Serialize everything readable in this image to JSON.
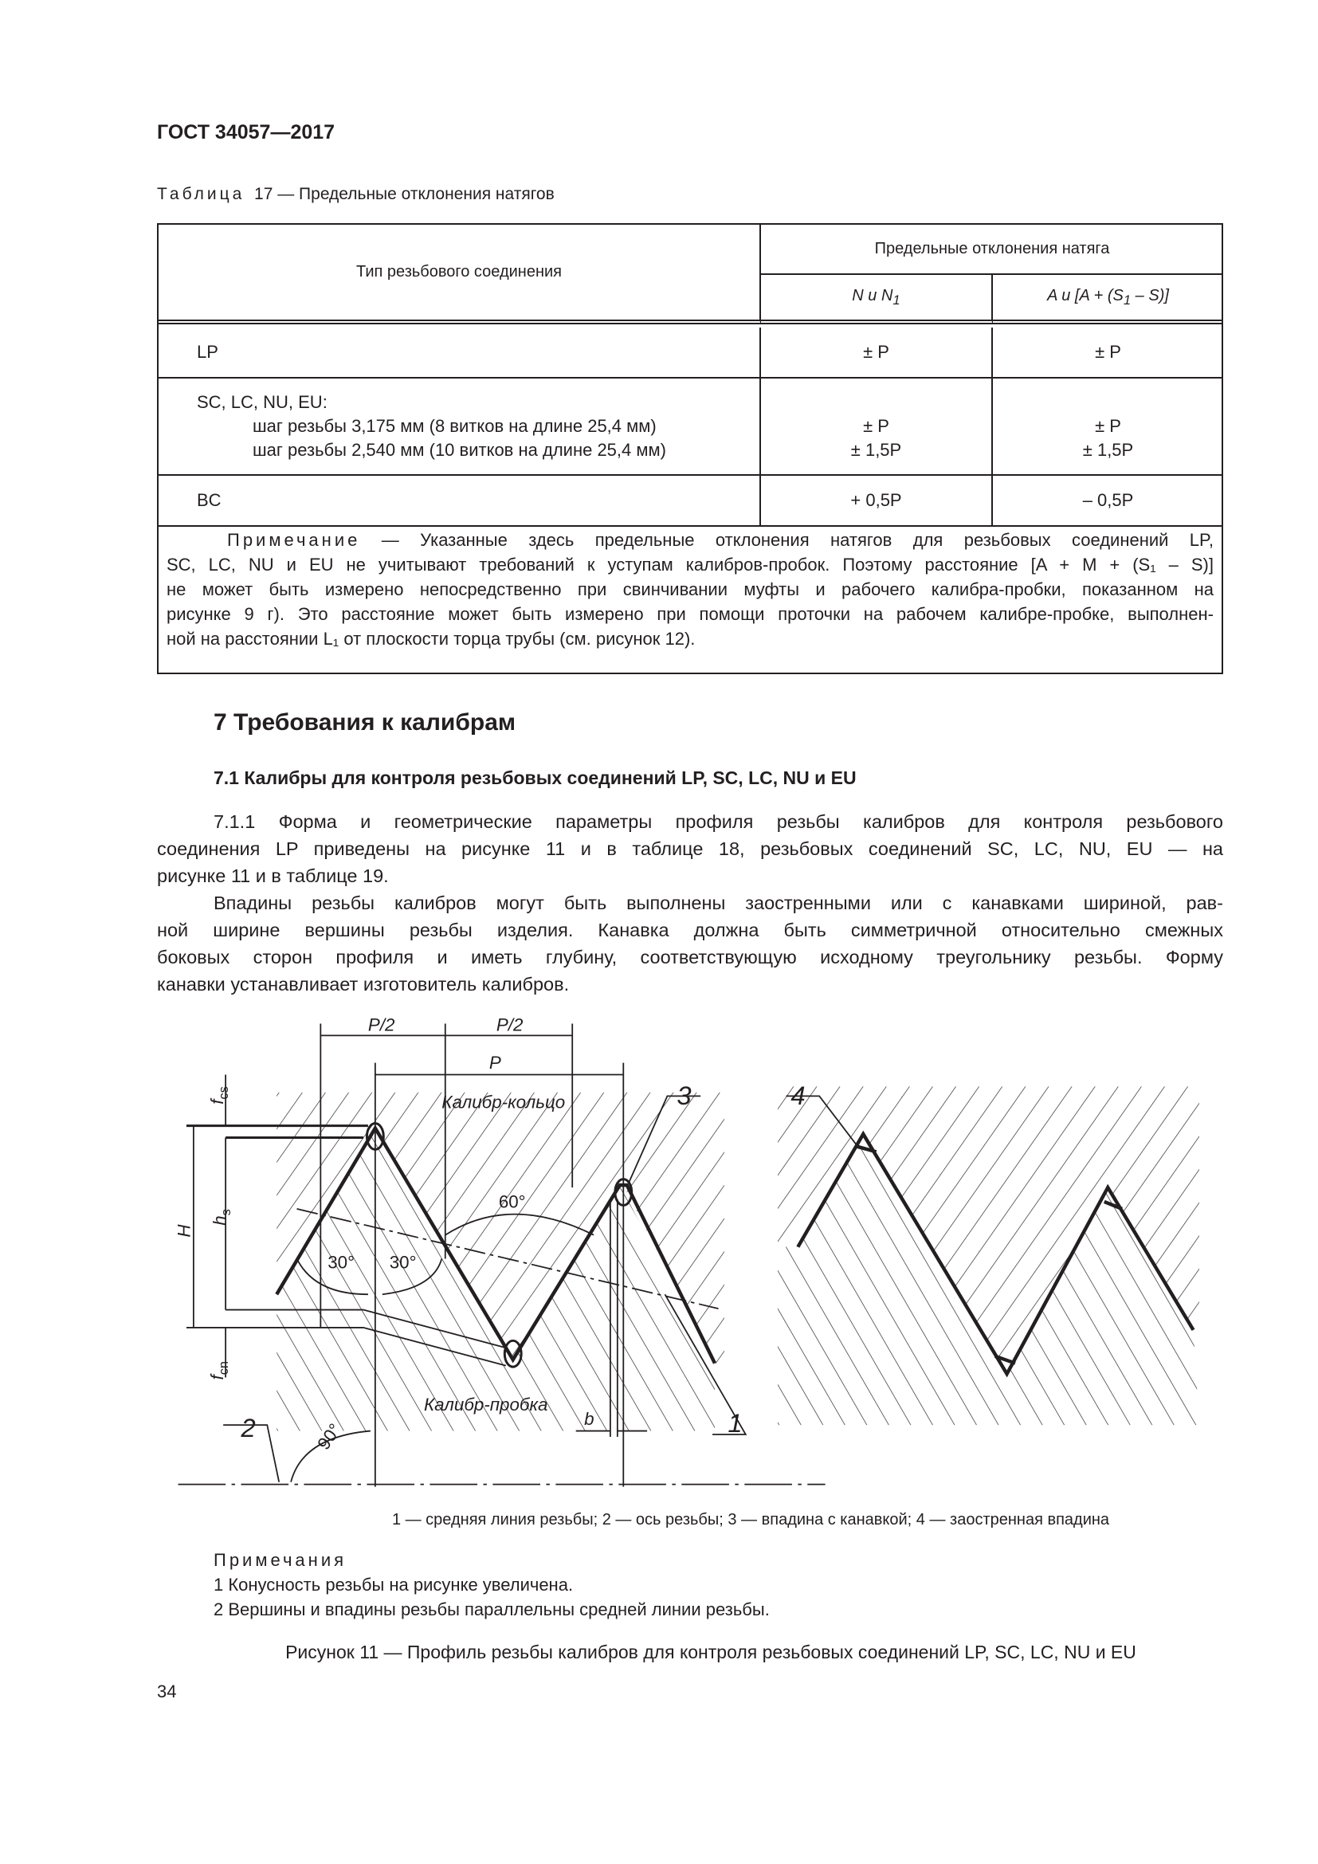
{
  "header": {
    "standard": "ГОСТ 34057—2017"
  },
  "table": {
    "caption_label": "Таблица",
    "caption_text": "17 — Предельные отклонения натягов",
    "col_type": "Тип резьбового соединения",
    "col_group": "Предельные отклонения натяга",
    "col_n": {
      "main": "N и N",
      "sub": "1"
    },
    "col_a": {
      "pre": "A и [A + (S",
      "sub": "1",
      "post": " – S)]"
    },
    "rows": [
      {
        "type": "LP",
        "n": "± P",
        "a": "± P"
      },
      {
        "type": "SC, LC, NU, EU:",
        "sub1": "шаг резьбы 3,175 мм (8 витков на длине 25,4 мм)",
        "sub2": "шаг резьбы 2,540 мм (10 витков на длине 25,4 мм)",
        "n1": "± P",
        "n2": "± 1,5P",
        "a1": "± P",
        "a2": "± 1,5P"
      },
      {
        "type": "BC",
        "n": "+ 0,5P",
        "a": "– 0,5P"
      }
    ],
    "note": {
      "label": "Примечание",
      "lines": [
        " — Указанные здесь предельные отклонения натягов для резьбовых соединений LP,",
        "SC, LC, NU и EU не учитывают требований к уступам калибров-пробок. Поэтому расстояние [A + M + (S₁ – S)]",
        "не может быть измерено непосредственно при свинчивании муфты и рабочего калибра-пробки, показанном на",
        "рисунке 9 г). Это расстояние может быть измерено при помощи проточки на рабочем калибре-пробке, выполнен-",
        "ной на расстоянии L₁ от плоскости торца трубы (см. рисунок 12)."
      ]
    }
  },
  "section": {
    "title": "7  Требования к калибрам",
    "subtitle": "7.1  Калибры для контроля резьбовых соединений LP, SC, LC, NU и EU",
    "para1": [
      "7.1.1 Форма и геометрические параметры профиля резьбы калибров для контроля резьбового",
      "соединения LP приведены на рисунке 11 и в таблице 18, резьбовых соединений SC, LC, NU, EU — на",
      "рисунке 11 и в таблице 19."
    ],
    "para2": [
      "Впадины резьбы калибров могут быть выполнены заостренными или с канавками шириной, рав-",
      "ной ширине вершины резьбы изделия. Канавка должна быть симметричной относительно смежных",
      "боковых сторон профиля и иметь глубину, соответствующую исходному треугольнику резьбы. Форму",
      "канавки устанавливает изготовитель калибров."
    ]
  },
  "figure": {
    "labels": {
      "p_half_1": "P/2",
      "p_half_2": "P/2",
      "p": "P",
      "ring": "Калибр-кольцо",
      "plug": "Калибр-пробка",
      "angle60": "60°",
      "angle30a": "30°",
      "angle30b": "30°",
      "angle90": "90°",
      "b": "b",
      "H": "H",
      "hs": "h",
      "hs_sub": "s",
      "fcs": "f",
      "fcs_sub": "cs",
      "fcn": "f",
      "fcn_sub": "cn",
      "n1": "1",
      "n2": "2",
      "n3": "3",
      "n4": "4"
    },
    "legend": "1 — средняя линия резьбы; 2 — ось резьбы; 3 — впадина с канавкой; 4 — заостренная впадина",
    "notes_label": "Примечания",
    "notes": [
      "1  Конусность резьбы на рисунке увеличена.",
      "2  Вершины и впадины резьбы параллельны средней линии резьбы."
    ],
    "caption": "Рисунок 11 — Профиль резьбы калибров для контроля резьбовых соединений LP, SC, LC, NU и EU"
  },
  "page_number": "34"
}
